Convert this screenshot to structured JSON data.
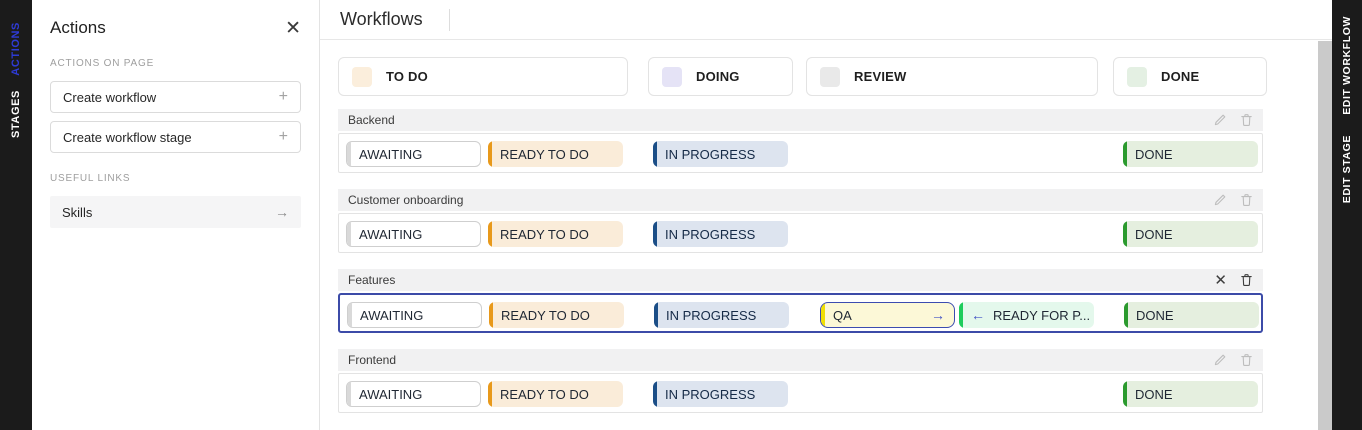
{
  "left_rail": {
    "items": [
      {
        "id": "actions",
        "label": "ACTIONS",
        "color": "#2E3BD6"
      },
      {
        "id": "stages",
        "label": "STAGES",
        "color": "#FFFFFF"
      }
    ]
  },
  "actions_panel": {
    "title": "Actions",
    "actions_section_label": "ACTIONS ON PAGE",
    "action_buttons": [
      {
        "label": "Create workflow",
        "icon": "plus"
      },
      {
        "label": "Create workflow stage",
        "icon": "plus"
      }
    ],
    "links_section_label": "USEFUL LINKS",
    "links": [
      {
        "label": "Skills",
        "icon": "arrow-right"
      }
    ]
  },
  "main": {
    "title": "Workflows",
    "columns": [
      {
        "label": "TO DO",
        "swatch_color": "#FBEEDC"
      },
      {
        "label": "DOING",
        "swatch_color": "#E5E3F6"
      },
      {
        "label": "REVIEW",
        "swatch_color": "#E9E9E9"
      },
      {
        "label": "DONE",
        "swatch_color": "#E4F0E3"
      }
    ],
    "chip_styles": {
      "awaiting": {
        "bg": "#FFFFFF",
        "accent": "#D9D9D9",
        "border": "#CFCFCF",
        "text": "#1F2733"
      },
      "ready_to_do": {
        "bg": "#FAECD9",
        "accent": "#E8991B",
        "border": "",
        "text": "#1F2733"
      },
      "in_progress": {
        "bg": "#DDE4EF",
        "accent": "#1B4E87",
        "border": "",
        "text": "#152A47"
      },
      "qa": {
        "bg": "#FCF8D7",
        "accent": "#F0DF05",
        "border": "#3C4CB0",
        "text": "#1F2733"
      },
      "ready_for": {
        "bg": "#E4F8EC",
        "accent": "#1ECC5C",
        "border": "",
        "text": "#1F2733"
      },
      "done": {
        "bg": "#E5EFDF",
        "accent": "#2B9A2E",
        "border": "",
        "text": "#1F2733"
      }
    },
    "selected_border_color": "#3C4BA8",
    "workflows": [
      {
        "name": "Backend",
        "selected": false,
        "header_icons": [
          "edit",
          "delete"
        ],
        "stages": [
          {
            "label": "AWAITING",
            "style": "awaiting",
            "slot": 0
          },
          {
            "label": "READY TO DO",
            "style": "ready_to_do",
            "slot": 1
          },
          {
            "label": "IN PROGRESS",
            "style": "in_progress",
            "slot": 2
          },
          {
            "label": "DONE",
            "style": "done",
            "slot": 5
          }
        ]
      },
      {
        "name": "Customer onboarding",
        "selected": false,
        "header_icons": [
          "edit",
          "delete"
        ],
        "stages": [
          {
            "label": "AWAITING",
            "style": "awaiting",
            "slot": 0
          },
          {
            "label": "READY TO DO",
            "style": "ready_to_do",
            "slot": 1
          },
          {
            "label": "IN PROGRESS",
            "style": "in_progress",
            "slot": 2
          },
          {
            "label": "DONE",
            "style": "done",
            "slot": 5
          }
        ]
      },
      {
        "name": "Features",
        "selected": true,
        "header_icons": [
          "close",
          "delete"
        ],
        "stages": [
          {
            "label": "AWAITING",
            "style": "awaiting",
            "slot": 0
          },
          {
            "label": "READY TO DO",
            "style": "ready_to_do",
            "slot": 1
          },
          {
            "label": "IN PROGRESS",
            "style": "in_progress",
            "slot": 2
          },
          {
            "label": "QA",
            "style": "qa",
            "slot": 3,
            "outlined": true,
            "arrow": "right"
          },
          {
            "label": "READY FOR P...",
            "style": "ready_for",
            "slot": 4,
            "arrow": "left"
          },
          {
            "label": "DONE",
            "style": "done",
            "slot": 5
          }
        ]
      },
      {
        "name": "Frontend",
        "selected": false,
        "header_icons": [
          "edit",
          "delete"
        ],
        "stages": [
          {
            "label": "AWAITING",
            "style": "awaiting",
            "slot": 0
          },
          {
            "label": "READY TO DO",
            "style": "ready_to_do",
            "slot": 1
          },
          {
            "label": "IN PROGRESS",
            "style": "in_progress",
            "slot": 2
          },
          {
            "label": "DONE",
            "style": "done",
            "slot": 5
          }
        ]
      }
    ]
  },
  "right_rail": {
    "items": [
      {
        "id": "edit-workflow",
        "label": "EDIT WORKFLOW"
      },
      {
        "id": "edit-stage",
        "label": "EDIT STAGE"
      }
    ]
  }
}
